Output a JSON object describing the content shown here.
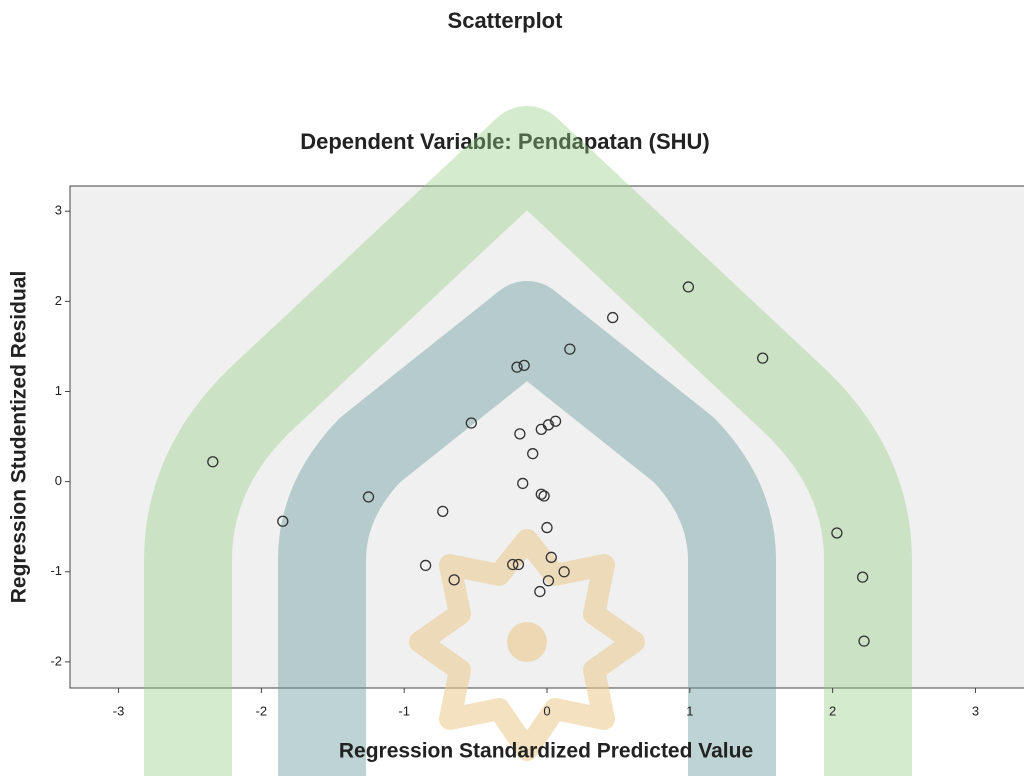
{
  "chart_data": {
    "type": "scatter",
    "title": "Scatterplot",
    "subtitle": "Dependent Variable: Pendapatan (SHU)",
    "x_label": "Regression Standardized Predicted Value",
    "y_label": "Regression Studentized Residual",
    "x": [
      -2.34,
      -1.85,
      -1.25,
      -0.85,
      -0.73,
      -0.65,
      -0.53,
      -0.24,
      -0.2,
      -0.21,
      -0.16,
      -0.19,
      -0.17,
      -0.1,
      -0.04,
      -0.04,
      -0.02,
      -0.05,
      0.0,
      0.01,
      0.06,
      0.03,
      0.01,
      0.12,
      0.16,
      0.46,
      0.99,
      1.51,
      2.03,
      2.21,
      2.22
    ],
    "values": [
      0.22,
      -0.44,
      -0.17,
      -0.93,
      -0.33,
      -1.09,
      0.65,
      -0.92,
      -0.92,
      1.27,
      1.29,
      0.53,
      -0.02,
      0.31,
      0.58,
      -0.14,
      -0.16,
      -1.22,
      -0.51,
      0.63,
      0.67,
      -0.84,
      -1.1,
      -1.0,
      1.47,
      1.82,
      2.16,
      1.37,
      -0.57,
      -1.06,
      -1.77
    ],
    "xlim": [
      -3.34,
      3.34
    ],
    "ylim": [
      -2.29,
      3.28
    ],
    "xticks": [
      -3,
      -2,
      -1,
      0,
      1,
      2,
      3
    ],
    "yticks": [
      -2,
      -1,
      0,
      1,
      2,
      3
    ],
    "color": "#333333"
  }
}
